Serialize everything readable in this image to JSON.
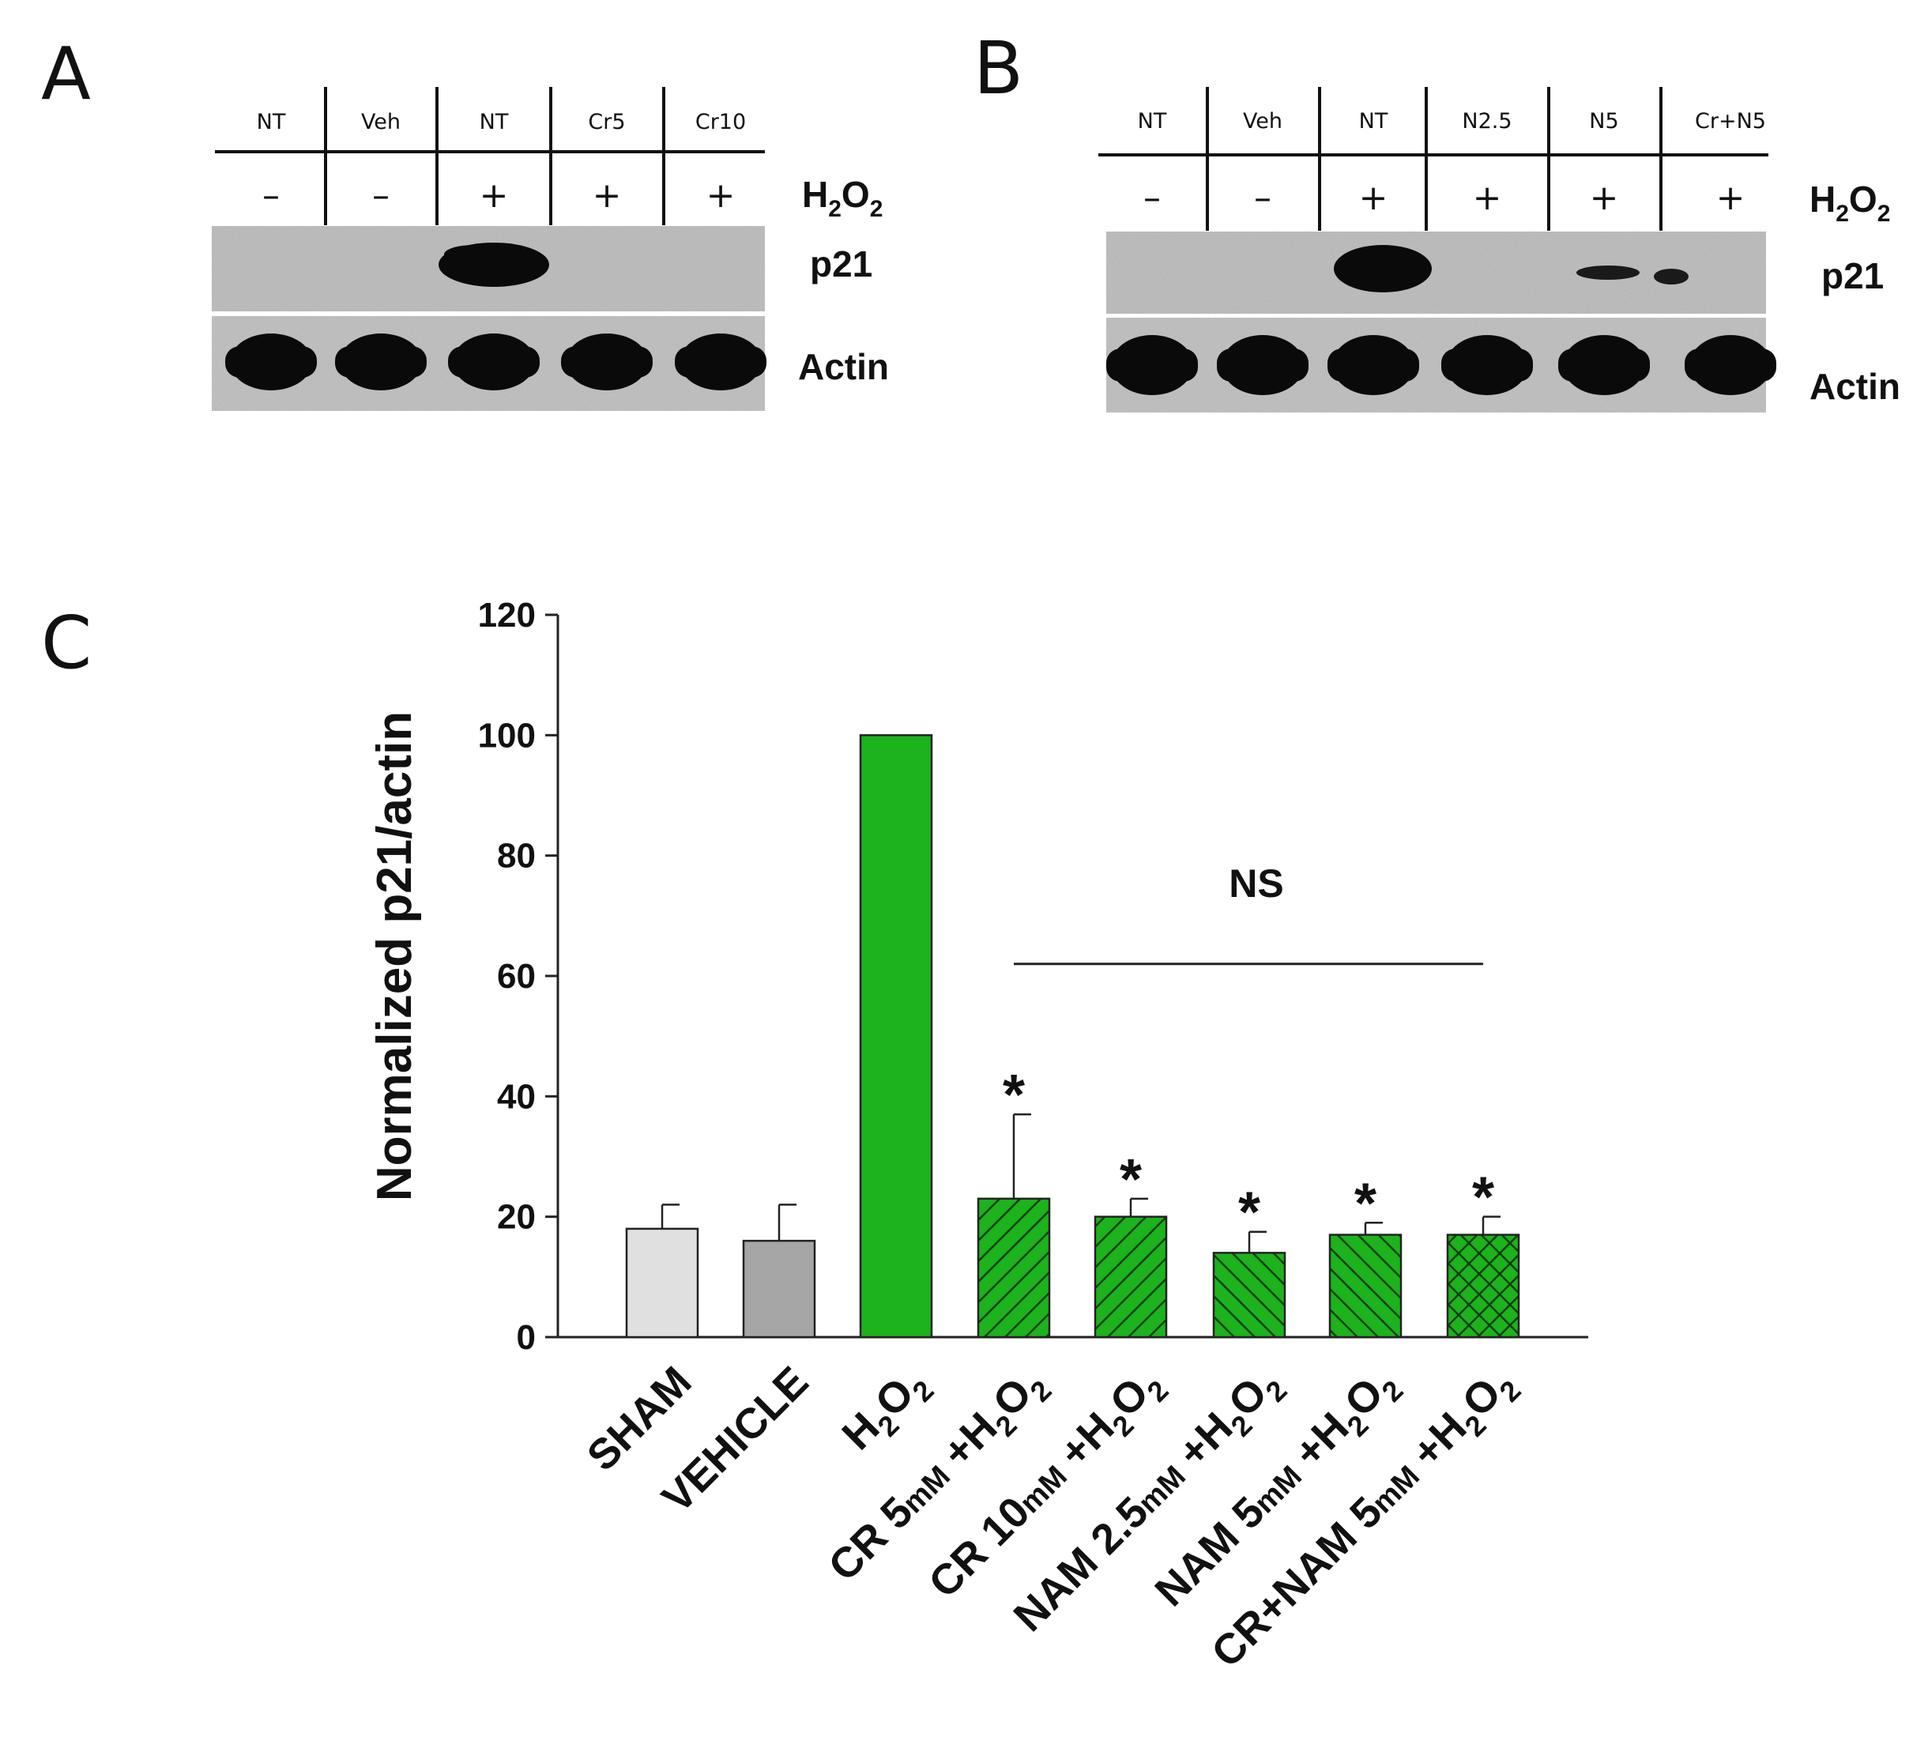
{
  "panels": {
    "a": {
      "letter": "A",
      "lanes": [
        "NT",
        "Veh",
        "NT",
        "Cr5",
        "Cr10"
      ],
      "treatment_signs": [
        "–",
        "–",
        "+",
        "+",
        "+"
      ],
      "treatment_label_base": "H",
      "treatment_label_sub1": "2",
      "treatment_label_mid": "O",
      "treatment_label_sub2": "2",
      "row_labels": [
        "p21",
        "Actin"
      ]
    },
    "b": {
      "letter": "B",
      "lanes": [
        "NT",
        "Veh",
        "NT",
        "N2.5",
        "N5",
        "Cr+N5"
      ],
      "treatment_signs": [
        "–",
        "–",
        "+",
        "+",
        "+",
        "+"
      ],
      "treatment_label_base": "H",
      "treatment_label_sub1": "2",
      "treatment_label_mid": "O",
      "treatment_label_sub2": "2",
      "row_labels": [
        "p21",
        "Actin"
      ]
    },
    "c": {
      "letter": "C"
    }
  },
  "colors": {
    "sham": "#e0e0e0",
    "vehicle": "#a6a6a6",
    "green": "#1cb31c",
    "blot_bg": "#c4c4c4",
    "band": "#0a0a0a"
  },
  "chart_data": {
    "type": "bar",
    "ylabel": "Normalized p21/actin",
    "ylim": [
      0,
      120
    ],
    "yticks": [
      0,
      20,
      40,
      60,
      80,
      100,
      120
    ],
    "categories": [
      {
        "main": "SHAM",
        "conc": "",
        "tail": ""
      },
      {
        "main": "VEHICLE",
        "conc": "",
        "tail": ""
      },
      {
        "main": "H",
        "conc": "",
        "tail": "2O2"
      },
      {
        "main": "CR 5",
        "conc": "mM",
        "tail": " +H2O2"
      },
      {
        "main": "CR 10",
        "conc": "mM",
        "tail": " +H2O2"
      },
      {
        "main": "NAM 2.5",
        "conc": "mM",
        "tail": " +H2O2"
      },
      {
        "main": "NAM 5",
        "conc": "mM",
        "tail": " +H2O2"
      },
      {
        "main": "CR+NAM 5",
        "conc": "mM",
        "tail": " +H2O2"
      }
    ],
    "values": [
      18,
      16,
      100,
      23,
      20,
      14,
      17,
      17
    ],
    "errors": [
      4,
      6,
      0,
      14,
      3,
      3.5,
      2,
      3
    ],
    "patterns": [
      "none",
      "none",
      "none",
      "diag-right",
      "diag-right",
      "diag-left",
      "diag-left",
      "crosshatch"
    ],
    "significance": [
      "",
      "",
      "",
      "*",
      "*",
      "*",
      "*",
      "*"
    ],
    "bracket": {
      "label": "NS",
      "from_index": 3,
      "to_index": 7,
      "y": 62
    }
  }
}
